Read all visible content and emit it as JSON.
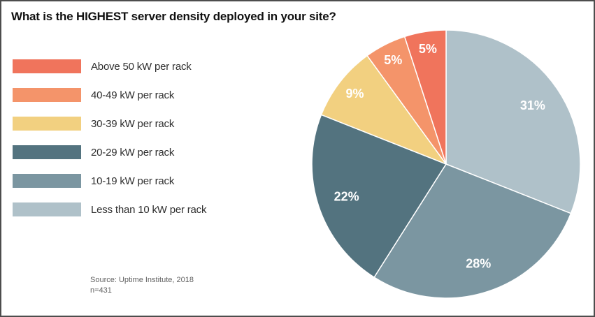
{
  "title": "What is the HIGHEST server density deployed in your site?",
  "source": {
    "line1": "Source: Uptime Institute, 2018",
    "line2": "n=431"
  },
  "chart_data": {
    "type": "pie",
    "title": "What is the HIGHEST server density deployed in your site?",
    "value_suffix": "%",
    "start": "top",
    "direction": "clockwise",
    "legend_position": "left",
    "series": [
      {
        "label": "Above 50 kW per rack",
        "value": 5,
        "color": "#F0745C"
      },
      {
        "label": "40-49 kW per rack",
        "value": 5,
        "color": "#F4946A"
      },
      {
        "label": "30-39 kW per rack",
        "value": 9,
        "color": "#F2D080"
      },
      {
        "label": "20-29 kW per rack",
        "value": 22,
        "color": "#53737F"
      },
      {
        "label": "10-19 kW per rack",
        "value": 28,
        "color": "#7B96A1"
      },
      {
        "label": "Less than 10 kW per rack",
        "value": 31,
        "color": "#AFC1C9"
      }
    ]
  }
}
